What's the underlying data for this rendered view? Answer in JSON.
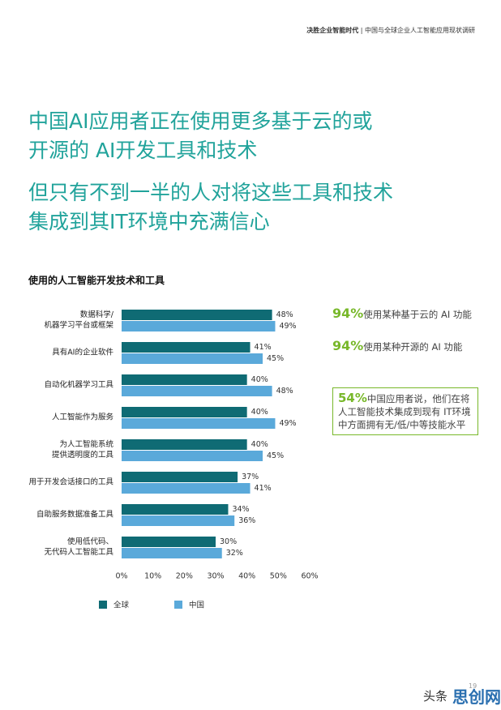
{
  "header": {
    "title": "决胜企业智能时代",
    "subtitle": "中国与全球企业人工智能应用现状调研"
  },
  "headline": {
    "lines": [
      "中国AI应用者正在使用更多基于云的或",
      "开源的 AI开发工具和技术"
    ],
    "sub_lines": [
      "但只有不到一半的人对将这些工具和技术",
      "集成到其IT环境中充满信心"
    ]
  },
  "chart_data": {
    "type": "hbar",
    "title": "使用的人工智能开发技术和工具",
    "categories": [
      "数据科学/\n机器学习平台或框架",
      "具有AI的企业软件",
      "自动化机器学习工具",
      "人工智能作为服务",
      "为人工智能系统\n提供透明度的工具",
      "用于开发会话接口的工具",
      "自助服务数据准备工具",
      "使用低代码、\n无代码人工智能工具"
    ],
    "series": [
      {
        "name": "全球",
        "color": "#0f6b74",
        "values": [
          48,
          41,
          40,
          40,
          40,
          37,
          34,
          30
        ],
        "value_labels": [
          "48%",
          "41%",
          "40%",
          "40%",
          "40%",
          "37%",
          "34%",
          "30%"
        ]
      },
      {
        "name": "中国",
        "color": "#5aa9da",
        "values": [
          49,
          45,
          48,
          49,
          45,
          41,
          36,
          32
        ],
        "value_labels": [
          "49%",
          "45%",
          "48%",
          "49%",
          "45%",
          "41%",
          "36%",
          "32%"
        ]
      }
    ],
    "xlim": [
      0,
      60
    ],
    "xticks": [
      {
        "value": 0,
        "label": "0%"
      },
      {
        "value": 10,
        "label": "10%"
      },
      {
        "value": 20,
        "label": "20%"
      },
      {
        "value": 30,
        "label": "30%"
      },
      {
        "value": 40,
        "label": "40%"
      },
      {
        "value": 50,
        "label": "50%"
      },
      {
        "value": 60,
        "label": "60%"
      }
    ]
  },
  "callouts": [
    {
      "value": "94%",
      "text": "使用某种基于云的 AI 功能"
    },
    {
      "value": "94%",
      "text": "使用某种开源的 AI 功能"
    },
    {
      "value": "54%",
      "text": "中国应用者说，他们在将人工智能技术集成到现有 IT环境中方面拥有无/低/中等技能水平"
    }
  ],
  "footer": {
    "page": "19",
    "watermark": "头条",
    "site": "思创网"
  }
}
